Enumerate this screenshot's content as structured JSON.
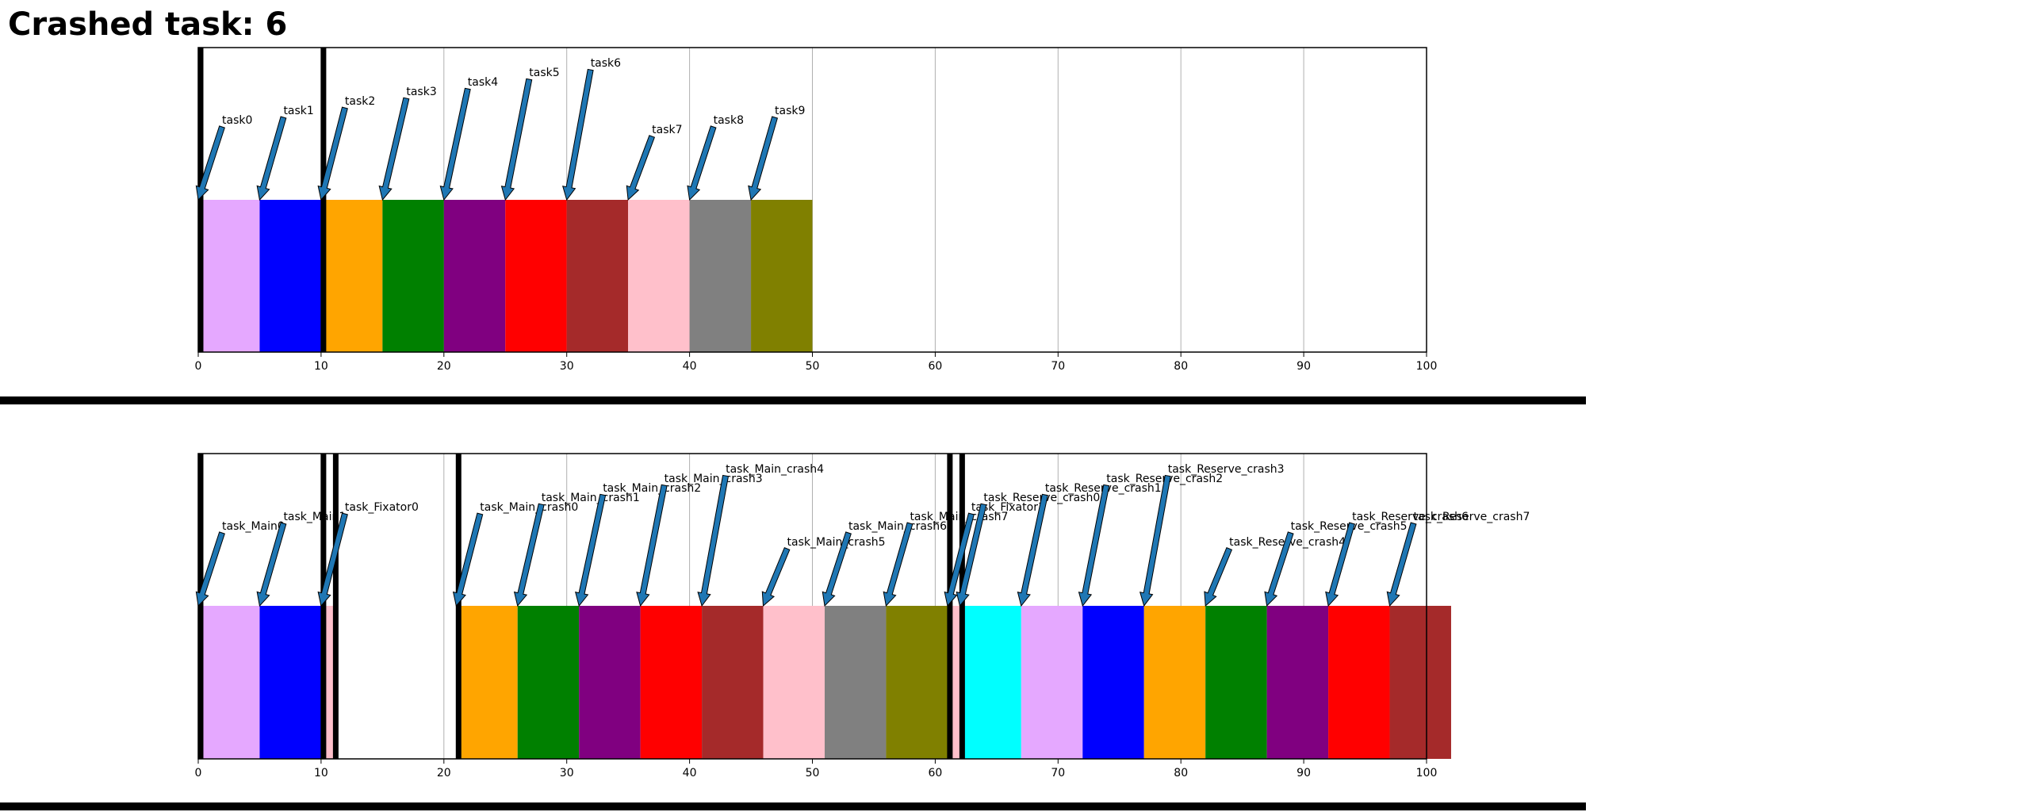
{
  "title": "Crashed task: 6",
  "chart_data": [
    {
      "type": "bar",
      "orientation": "horizontal-timeline",
      "xlim": [
        0,
        100
      ],
      "xticks": [
        0,
        10,
        20,
        30,
        40,
        50,
        60,
        70,
        80,
        90,
        100
      ],
      "grid": "vertical",
      "markers": [
        0,
        10
      ],
      "bars": [
        {
          "label": "task0",
          "start": 0,
          "end": 5,
          "color": "#e5a8ff"
        },
        {
          "label": "task1",
          "start": 5,
          "end": 10,
          "color": "#0000ff"
        },
        {
          "label": "task2",
          "start": 10,
          "end": 15,
          "color": "#ffa500"
        },
        {
          "label": "task3",
          "start": 15,
          "end": 20,
          "color": "#008000"
        },
        {
          "label": "task4",
          "start": 20,
          "end": 25,
          "color": "#800080"
        },
        {
          "label": "task5",
          "start": 25,
          "end": 30,
          "color": "#ff0000"
        },
        {
          "label": "task6",
          "start": 30,
          "end": 35,
          "color": "#a52a2a"
        },
        {
          "label": "task7",
          "start": 35,
          "end": 40,
          "color": "#ffc0cb"
        },
        {
          "label": "task8",
          "start": 40,
          "end": 45,
          "color": "#808080"
        },
        {
          "label": "task9",
          "start": 45,
          "end": 50,
          "color": "#808000"
        }
      ]
    },
    {
      "type": "bar",
      "orientation": "horizontal-timeline",
      "xlim": [
        0,
        102
      ],
      "xticks": [
        0,
        10,
        20,
        30,
        40,
        50,
        60,
        70,
        80,
        90,
        100
      ],
      "grid": "vertical",
      "markers": [
        0,
        10,
        11,
        21,
        61,
        62
      ],
      "bars": [
        {
          "label": "task_Main0",
          "start": 0,
          "end": 5,
          "color": "#e5a8ff"
        },
        {
          "label": "task_Main1",
          "start": 5,
          "end": 10,
          "color": "#0000ff"
        },
        {
          "label": "task_Fixator0",
          "start": 10,
          "end": 11,
          "color": "#ffc0cb"
        },
        {
          "label": "task_Main_crash0",
          "start": 21,
          "end": 26,
          "color": "#ffa500"
        },
        {
          "label": "task_Main_crash1",
          "start": 26,
          "end": 31,
          "color": "#008000"
        },
        {
          "label": "task_Main_crash2",
          "start": 31,
          "end": 36,
          "color": "#800080"
        },
        {
          "label": "task_Main_crash3",
          "start": 36,
          "end": 41,
          "color": "#ff0000"
        },
        {
          "label": "task_Main_crash4",
          "start": 41,
          "end": 46,
          "color": "#a52a2a"
        },
        {
          "label": "task_Main_crash5",
          "start": 46,
          "end": 51,
          "color": "#ffc0cb"
        },
        {
          "label": "task_Main_crash6",
          "start": 51,
          "end": 56,
          "color": "#808080"
        },
        {
          "label": "task_Main_crash7",
          "start": 56,
          "end": 61,
          "color": "#808000"
        },
        {
          "label": "task_Fixator1",
          "start": 61,
          "end": 62,
          "color": "#ffc0cb"
        },
        {
          "label": "task_Reserve_crash0",
          "start": 62,
          "end": 67,
          "color": "#00ffff"
        },
        {
          "label": "task_Reserve_crash1",
          "start": 67,
          "end": 72,
          "color": "#e5a8ff"
        },
        {
          "label": "task_Reserve_crash2",
          "start": 72,
          "end": 77,
          "color": "#0000ff"
        },
        {
          "label": "task_Reserve_crash3",
          "start": 77,
          "end": 82,
          "color": "#ffa500"
        },
        {
          "label": "task_Reserve_crash4",
          "start": 82,
          "end": 87,
          "color": "#008000"
        },
        {
          "label": "task_Reserve_crash5",
          "start": 87,
          "end": 92,
          "color": "#800080"
        },
        {
          "label": "task_Reserve_crash6",
          "start": 92,
          "end": 97,
          "color": "#ff0000"
        },
        {
          "label": "task_Reserve_crash7",
          "start": 97,
          "end": 102,
          "color": "#a52a2a"
        }
      ]
    }
  ]
}
